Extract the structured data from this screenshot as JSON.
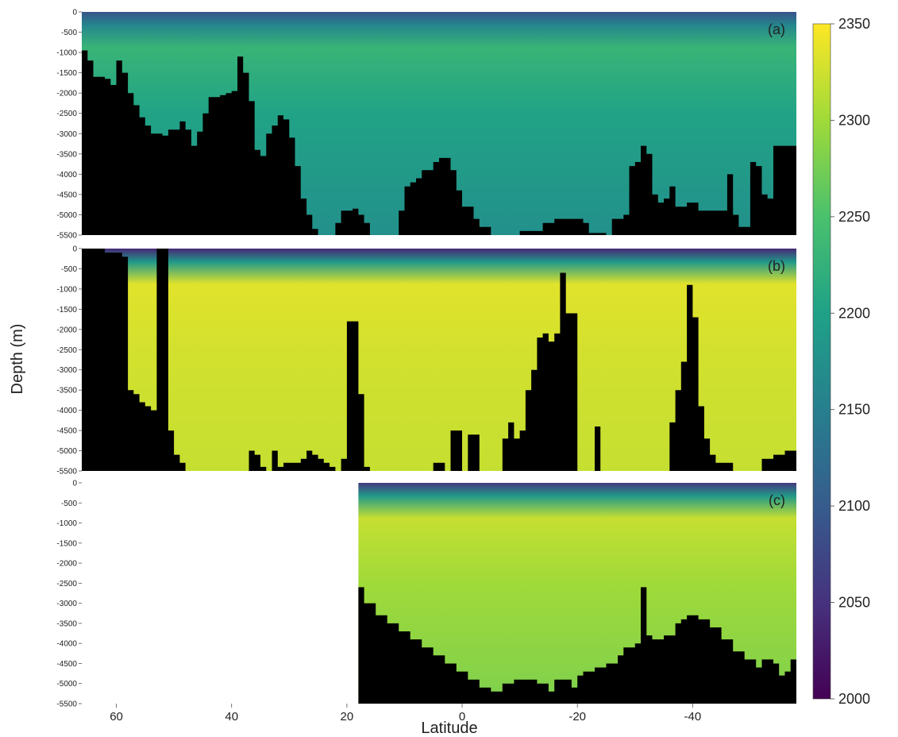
{
  "chart_data": {
    "type": "heatmap",
    "xlabel": "Latitude",
    "ylabel": "Depth (m)",
    "xlim": [
      66,
      -58
    ],
    "ylim": [
      0,
      -5500
    ],
    "x_ticks": [
      {
        "value": 60,
        "label": "60"
      },
      {
        "value": 40,
        "label": "40"
      },
      {
        "value": 20,
        "label": "20"
      },
      {
        "value": 0,
        "label": "0"
      },
      {
        "value": -20,
        "label": "-20"
      },
      {
        "value": -40,
        "label": "-40"
      }
    ],
    "y_ticks": [
      {
        "value": 0,
        "label": "0"
      },
      {
        "value": -500,
        "label": "-500"
      },
      {
        "value": -1000,
        "label": "-1000"
      },
      {
        "value": -1500,
        "label": "-1500"
      },
      {
        "value": -2000,
        "label": "-2000"
      },
      {
        "value": -2500,
        "label": "-2500"
      },
      {
        "value": -3000,
        "label": "-3000"
      },
      {
        "value": -3500,
        "label": "-3500"
      },
      {
        "value": -4000,
        "label": "-4000"
      },
      {
        "value": -4500,
        "label": "-4500"
      },
      {
        "value": -5000,
        "label": "-5000"
      },
      {
        "value": -5500,
        "label": "-5500"
      }
    ],
    "colorbar": {
      "min": 2000,
      "max": 2350,
      "ticks": [
        {
          "value": 2350,
          "label": "2350"
        },
        {
          "value": 2300,
          "label": "2300"
        },
        {
          "value": 2250,
          "label": "2250"
        },
        {
          "value": 2200,
          "label": "2200"
        },
        {
          "value": 2150,
          "label": "2150"
        },
        {
          "value": 2100,
          "label": "2100"
        },
        {
          "value": 2050,
          "label": "2050"
        },
        {
          "value": 2000,
          "label": "2000"
        }
      ],
      "colormap": [
        "#440154",
        "#46327e",
        "#365c8d",
        "#277f8e",
        "#1fa187",
        "#4ac16d",
        "#a0da39",
        "#fde725"
      ]
    },
    "panels": [
      {
        "label": "(a)",
        "data_start_lat": 66,
        "typical_value": 2175,
        "surface_value": 2090,
        "subsurface_max": 2230,
        "bathymetry": [
          [
            66,
            -950
          ],
          [
            65,
            -1200
          ],
          [
            64,
            -1600
          ],
          [
            62,
            -1650
          ],
          [
            61,
            -1800
          ],
          [
            60,
            -1200
          ],
          [
            59,
            -1500
          ],
          [
            58,
            -2000
          ],
          [
            57,
            -2300
          ],
          [
            56,
            -2600
          ],
          [
            55,
            -2800
          ],
          [
            54,
            -3000
          ],
          [
            52,
            -3050
          ],
          [
            51,
            -2900
          ],
          [
            49,
            -2700
          ],
          [
            48,
            -2900
          ],
          [
            47,
            -3300
          ],
          [
            46,
            -2950
          ],
          [
            45,
            -2500
          ],
          [
            44,
            -2100
          ],
          [
            42,
            -2050
          ],
          [
            41,
            -2000
          ],
          [
            40,
            -1950
          ],
          [
            39,
            -1100
          ],
          [
            38,
            -1500
          ],
          [
            37,
            -2200
          ],
          [
            36,
            -3400
          ],
          [
            35,
            -3550
          ],
          [
            34,
            -3000
          ],
          [
            33,
            -2800
          ],
          [
            32,
            -2550
          ],
          [
            31,
            -2650
          ],
          [
            30,
            -3100
          ],
          [
            29,
            -3800
          ],
          [
            28,
            -4600
          ],
          [
            27,
            -5000
          ],
          [
            26,
            -5350
          ],
          [
            25,
            -5500
          ],
          [
            24,
            -5500
          ],
          [
            23,
            -5500
          ],
          [
            22,
            -5200
          ],
          [
            21,
            -4900
          ],
          [
            19,
            -4850
          ],
          [
            18,
            -5000
          ],
          [
            17,
            -5200
          ],
          [
            16,
            -5500
          ],
          [
            13,
            -5500
          ],
          [
            11,
            -4900
          ],
          [
            10,
            -4300
          ],
          [
            9,
            -4200
          ],
          [
            8,
            -4100
          ],
          [
            7,
            -3900
          ],
          [
            5,
            -3700
          ],
          [
            4,
            -3600
          ],
          [
            3,
            -3600
          ],
          [
            2,
            -3900
          ],
          [
            1,
            -4400
          ],
          [
            0,
            -4800
          ],
          [
            -2,
            -5100
          ],
          [
            -3,
            -5300
          ],
          [
            -5,
            -5500
          ],
          [
            -9,
            -5500
          ],
          [
            -10,
            -5400
          ],
          [
            -13,
            -5400
          ],
          [
            -14,
            -5200
          ],
          [
            -16,
            -5100
          ],
          [
            -21,
            -5200
          ],
          [
            -22,
            -5450
          ],
          [
            -25,
            -5500
          ],
          [
            -26,
            -5100
          ],
          [
            -28,
            -5000
          ],
          [
            -29,
            -3800
          ],
          [
            -30,
            -3700
          ],
          [
            -31,
            -3300
          ],
          [
            -32,
            -3500
          ],
          [
            -33,
            -4500
          ],
          [
            -34,
            -4700
          ],
          [
            -35,
            -4600
          ],
          [
            -36,
            -4300
          ],
          [
            -37,
            -4800
          ],
          [
            -39,
            -4700
          ],
          [
            -41,
            -4900
          ],
          [
            -45,
            -4900
          ],
          [
            -46,
            -4000
          ],
          [
            -47,
            -5000
          ],
          [
            -48,
            -5300
          ],
          [
            -50,
            -3700
          ],
          [
            -51,
            -3800
          ],
          [
            -52,
            -4500
          ],
          [
            -53,
            -4600
          ],
          [
            -54,
            -3300
          ],
          [
            -56,
            -3300
          ],
          [
            -58,
            -3300
          ]
        ]
      },
      {
        "label": "(b)",
        "data_start_lat": 66,
        "typical_value": 2320,
        "surface_value": 2040,
        "subsurface_max": 2335,
        "bathymetry": [
          [
            66,
            0
          ],
          [
            64,
            0
          ],
          [
            62,
            -100
          ],
          [
            59,
            -200
          ],
          [
            58,
            -3500
          ],
          [
            57,
            -3600
          ],
          [
            56,
            -3800
          ],
          [
            55,
            -3900
          ],
          [
            54,
            -4000
          ],
          [
            53,
            0
          ],
          [
            52,
            0
          ],
          [
            51,
            -4500
          ],
          [
            50,
            -5100
          ],
          [
            49,
            -5300
          ],
          [
            48,
            -5500
          ],
          [
            42,
            -5500
          ],
          [
            41,
            -5500
          ],
          [
            40,
            -5500
          ],
          [
            38,
            -5500
          ],
          [
            37,
            -5000
          ],
          [
            36,
            -5100
          ],
          [
            35,
            -5400
          ],
          [
            34,
            -5500
          ],
          [
            33,
            -5000
          ],
          [
            32,
            -5400
          ],
          [
            31,
            -5300
          ],
          [
            28,
            -5200
          ],
          [
            27,
            -5000
          ],
          [
            26,
            -5100
          ],
          [
            25,
            -5200
          ],
          [
            24,
            -5300
          ],
          [
            23,
            -5400
          ],
          [
            22,
            -5500
          ],
          [
            21,
            -5200
          ],
          [
            20,
            -1800
          ],
          [
            19,
            -1800
          ],
          [
            18,
            -3600
          ],
          [
            17,
            -5400
          ],
          [
            16,
            -5500
          ],
          [
            6,
            -5500
          ],
          [
            5,
            -5300
          ],
          [
            3,
            -5500
          ],
          [
            2,
            -4500
          ],
          [
            1,
            -4500
          ],
          [
            0,
            -5500
          ],
          [
            -1,
            -4600
          ],
          [
            -2,
            -4600
          ],
          [
            -3,
            -5500
          ],
          [
            -6,
            -5500
          ],
          [
            -7,
            -4700
          ],
          [
            -8,
            -4300
          ],
          [
            -9,
            -4700
          ],
          [
            -10,
            -4500
          ],
          [
            -11,
            -3500
          ],
          [
            -12,
            -3000
          ],
          [
            -13,
            -2200
          ],
          [
            -14,
            -2100
          ],
          [
            -15,
            -2300
          ],
          [
            -16,
            -2100
          ],
          [
            -17,
            -600
          ],
          [
            -18,
            -1600
          ],
          [
            -19,
            -1600
          ],
          [
            -20,
            -5500
          ],
          [
            -22,
            -5500
          ],
          [
            -23,
            -4400
          ],
          [
            -24,
            -5500
          ],
          [
            -35,
            -5500
          ],
          [
            -36,
            -4300
          ],
          [
            -37,
            -3500
          ],
          [
            -38,
            -2800
          ],
          [
            -39,
            -900
          ],
          [
            -40,
            -1700
          ],
          [
            -41,
            -3900
          ],
          [
            -42,
            -4700
          ],
          [
            -43,
            -5100
          ],
          [
            -44,
            -5300
          ],
          [
            -46,
            -5300
          ],
          [
            -47,
            -5500
          ],
          [
            -52,
            -5200
          ],
          [
            -54,
            -5100
          ],
          [
            -56,
            -5000
          ],
          [
            -58,
            -5100
          ]
        ]
      },
      {
        "label": "(c)",
        "data_start_lat": 18,
        "typical_value": 2280,
        "surface_value": 2060,
        "subsurface_max": 2320,
        "bathymetry": [
          [
            18,
            -2600
          ],
          [
            17,
            -3000
          ],
          [
            15,
            -3300
          ],
          [
            13,
            -3500
          ],
          [
            11,
            -3700
          ],
          [
            9,
            -3900
          ],
          [
            7,
            -4100
          ],
          [
            5,
            -4300
          ],
          [
            3,
            -4500
          ],
          [
            1,
            -4700
          ],
          [
            -1,
            -4900
          ],
          [
            -3,
            -5100
          ],
          [
            -5,
            -5200
          ],
          [
            -7,
            -5000
          ],
          [
            -9,
            -4900
          ],
          [
            -11,
            -4900
          ],
          [
            -13,
            -5000
          ],
          [
            -15,
            -5200
          ],
          [
            -16,
            -4900
          ],
          [
            -17,
            -4900
          ],
          [
            -19,
            -5100
          ],
          [
            -20,
            -4800
          ],
          [
            -21,
            -4700
          ],
          [
            -23,
            -4600
          ],
          [
            -25,
            -4500
          ],
          [
            -27,
            -4300
          ],
          [
            -28,
            -4100
          ],
          [
            -30,
            -4000
          ],
          [
            -31,
            -2600
          ],
          [
            -32,
            -3800
          ],
          [
            -33,
            -3900
          ],
          [
            -35,
            -3800
          ],
          [
            -37,
            -3500
          ],
          [
            -38,
            -3400
          ],
          [
            -39,
            -3300
          ],
          [
            -40,
            -3300
          ],
          [
            -41,
            -3400
          ],
          [
            -43,
            -3600
          ],
          [
            -45,
            -3900
          ],
          [
            -47,
            -4200
          ],
          [
            -49,
            -4400
          ],
          [
            -51,
            -4600
          ],
          [
            -52,
            -4400
          ],
          [
            -54,
            -4500
          ],
          [
            -55,
            -4800
          ],
          [
            -56,
            -4700
          ],
          [
            -57,
            -4400
          ],
          [
            -58,
            -4500
          ]
        ]
      }
    ]
  }
}
